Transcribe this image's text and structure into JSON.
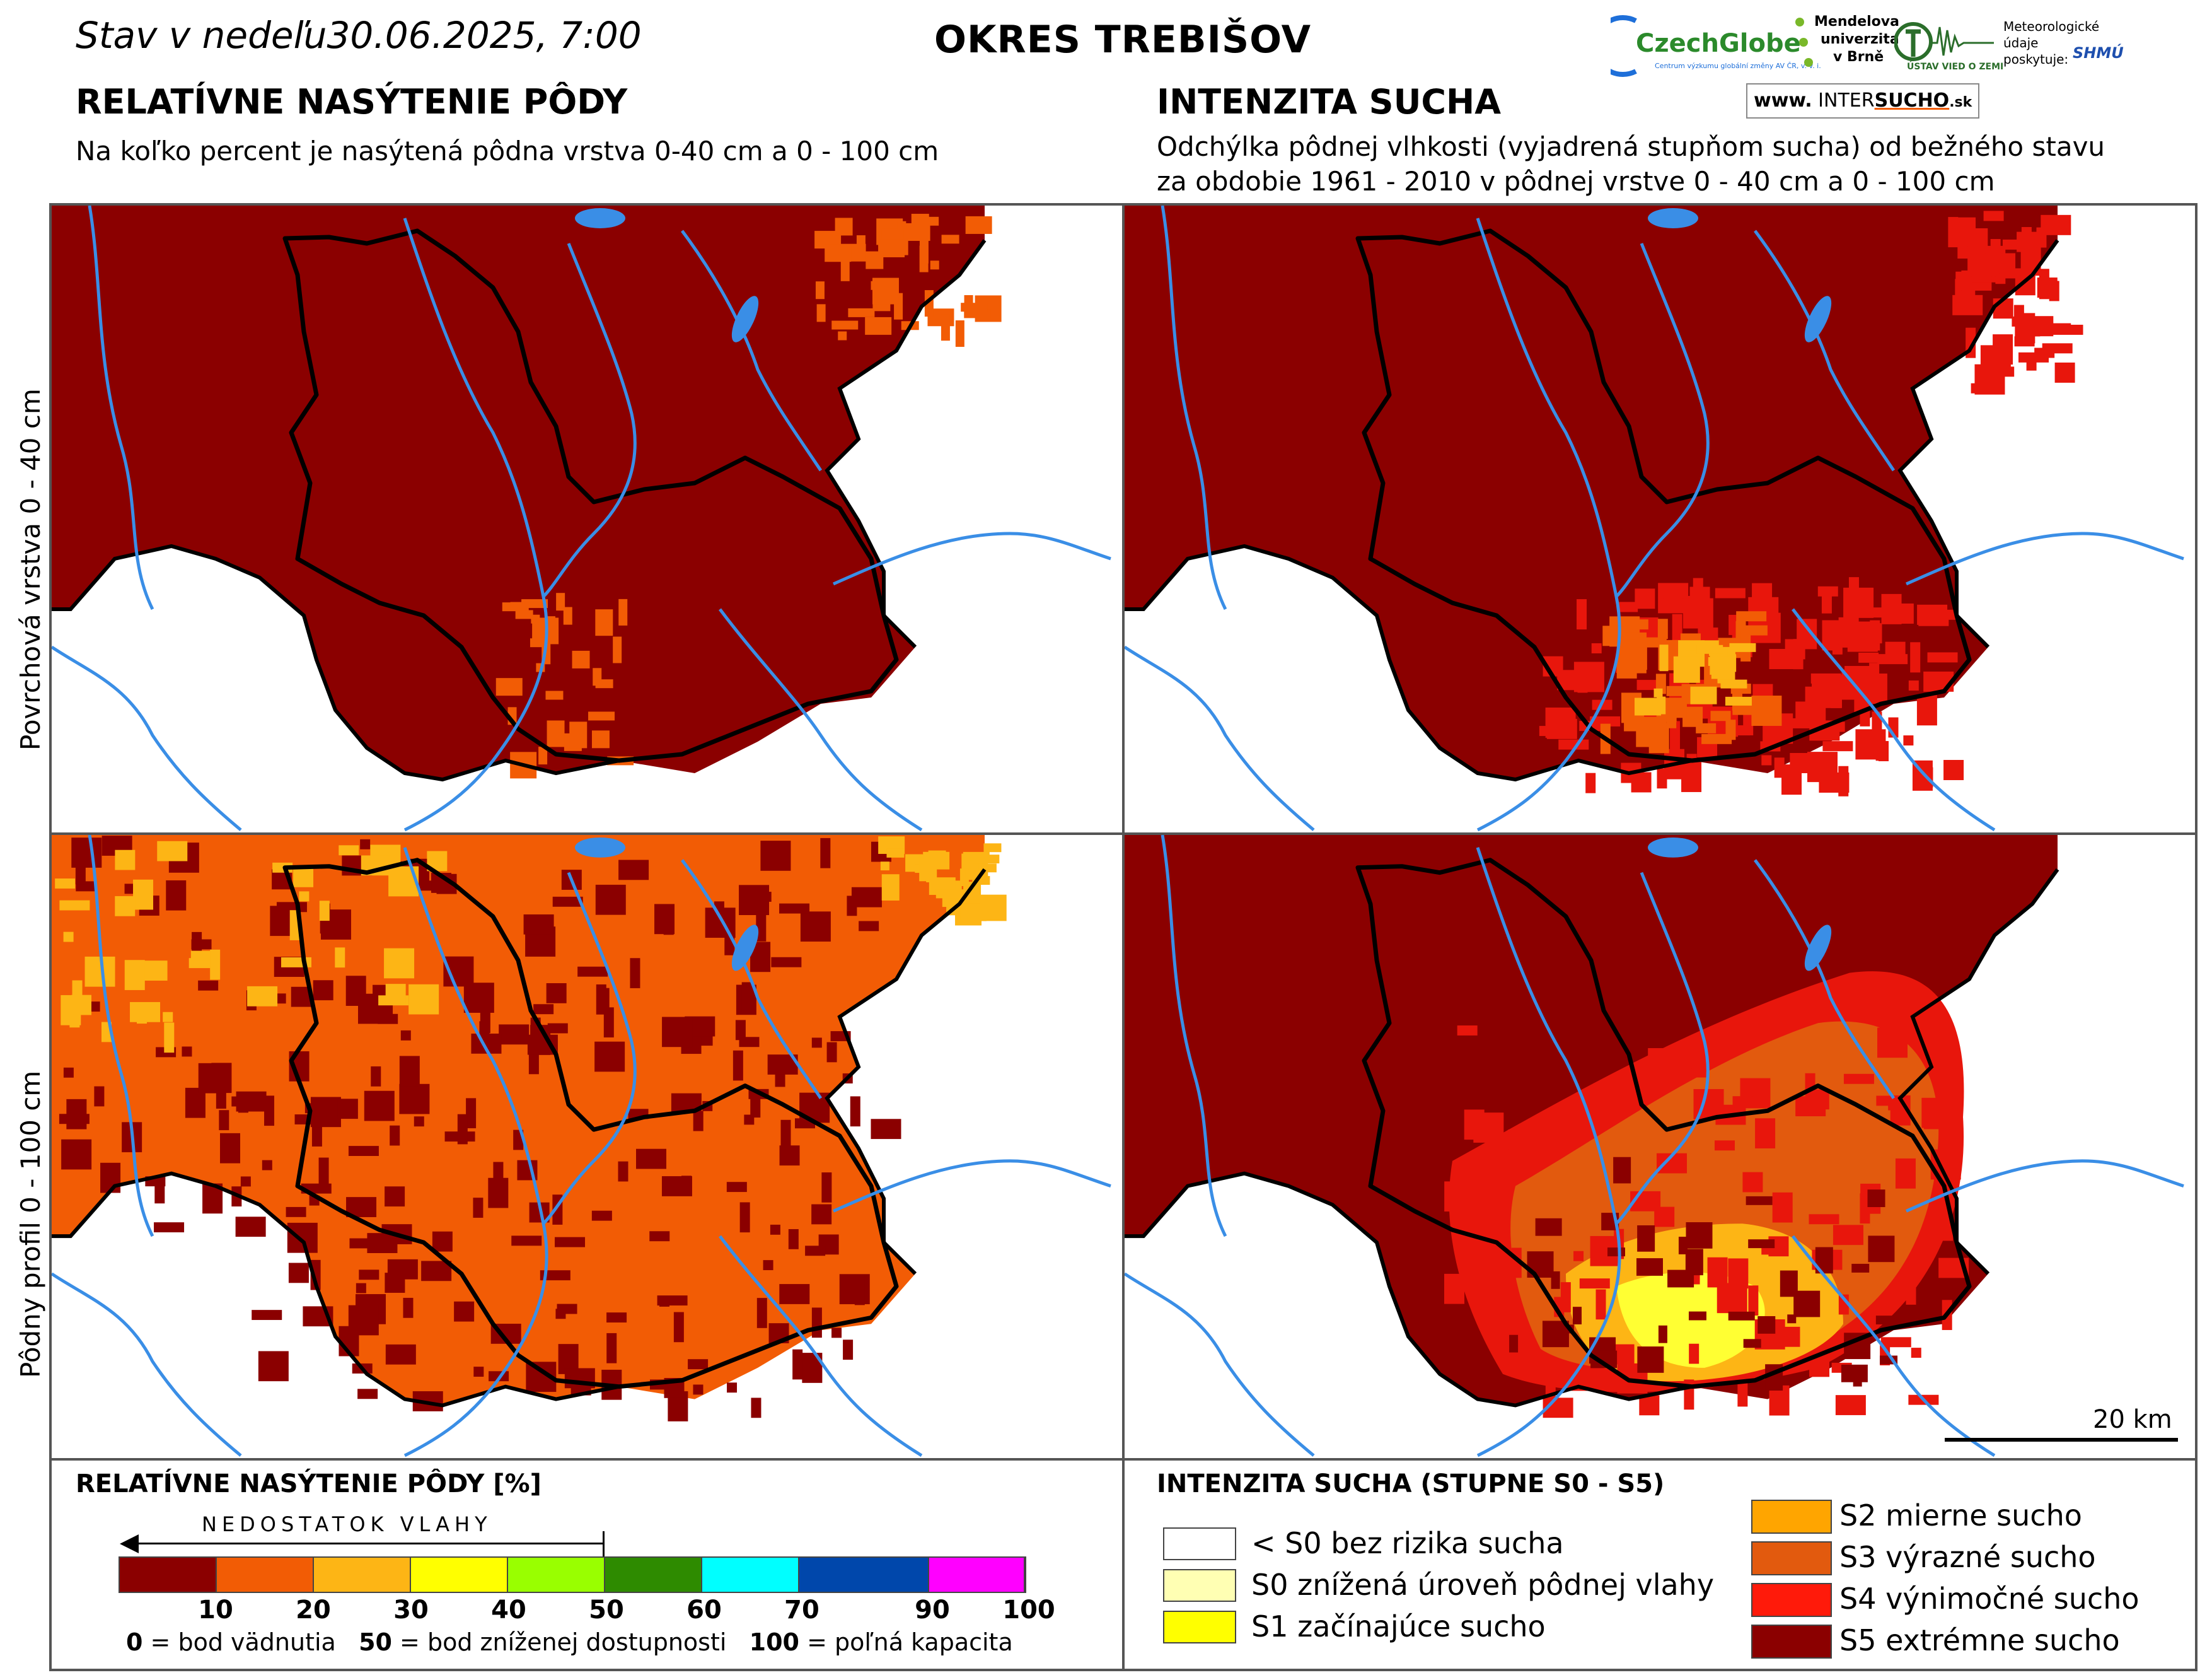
{
  "header": {
    "date_text": "Stav v nedeľu",
    "date_value": "30.06.2025, 7:00",
    "district": "OKRES  TREBIŠOV",
    "left_title": "RELATÍVNE NASÝTENIE PÔDY",
    "left_subtitle": "Na koľko percent je nasýtená pôdna vrstva 0-40 cm a 0 - 100 cm",
    "right_title": "INTENZITA SUCHA",
    "right_subtitle_1": "Odchýlka pôdnej vlhkosti (vyjadrená stupňom sucha) od bežného stavu",
    "right_subtitle_2": "za obdobie 1961 - 2010 v pôdnej vrstve 0 - 40 cm a 0 - 100 cm"
  },
  "logos": {
    "czechglobe": "CzechGlobe",
    "czechglobe_sub": "Centrum výzkumu globální změny AV ČR, v. v. i.",
    "mendelu_1": "Mendelova",
    "mendelu_2": "univerzita",
    "mendelu_3": "v Brně",
    "uvz": "ÚSTAV VIED O ZEMI",
    "met_1": "Meteorologické",
    "met_2": "údaje",
    "met_3": "poskytuje:",
    "shmu": "SHMÚ",
    "intersucho_prefix": "www.",
    "intersucho_a": "INTER",
    "intersucho_b": "SUCHO",
    "intersucho_suffix": ".sk"
  },
  "rows": {
    "top_label": "Povrchová vrstva 0 - 40 cm",
    "bottom_label": "Pôdny profil 0 - 100 cm"
  },
  "scale_bar": {
    "label": "20 km"
  },
  "legend_left": {
    "title": "RELATÍVNE NASÝTENIE PÔDY [%]",
    "arrow_label": "NEDOSTATOK VLAHY",
    "ticks": [
      "10",
      "20",
      "30",
      "40",
      "50",
      "60",
      "70",
      "90",
      "100"
    ],
    "colors": [
      "#8b0000",
      "#f25c05",
      "#fdb515",
      "#ffff00",
      "#99ff00",
      "#2e8b00",
      "#00ffff",
      "#0047ab",
      "#ff00ff"
    ],
    "note_0_bold": "0",
    "note_0": " = bod vädnutia",
    "note_50_bold": "50",
    "note_50": " = bod zníženej dostupnosti",
    "note_100_bold": "100",
    "note_100": " = poľná kapacita"
  },
  "legend_right": {
    "title": "INTENZITA SUCHA (STUPNE S0 - S5)",
    "items_left": [
      {
        "label": "< S0 bez rizika sucha",
        "color": "#ffffff"
      },
      {
        "label": "S0 znížená úroveň pôdnej vlahy",
        "color": "#ffffb3"
      },
      {
        "label": "S1 začínajúce sucho",
        "color": "#ffff00"
      }
    ],
    "items_right": [
      {
        "label": "S2 mierne sucho",
        "color": "#ffa500"
      },
      {
        "label": "S3 výrazné sucho",
        "color": "#e25a0e"
      },
      {
        "label": "S4 výnimočné sucho",
        "color": "#ff1a0a"
      },
      {
        "label": "S5 extrémne sucho",
        "color": "#8b0000"
      }
    ]
  },
  "map_colors": {
    "deep_red": "#8b0000",
    "red": "#e8160c",
    "orange": "#f25c05",
    "light_orange": "#fdb515",
    "yellow": "#ffff33",
    "river": "#3a8ee6",
    "border": "#000000"
  }
}
